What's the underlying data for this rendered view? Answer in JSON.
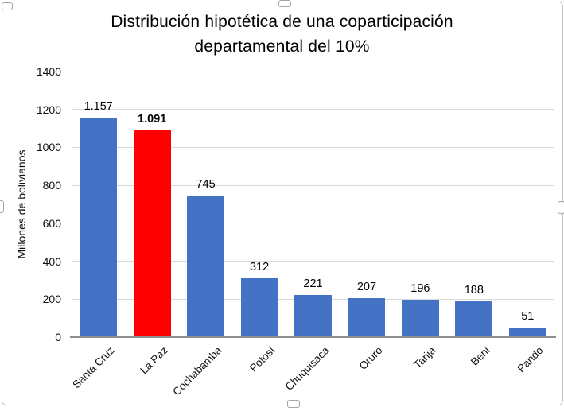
{
  "chart_object": {
    "selected": true,
    "border_color": "#c3c3c3",
    "background": "#ffffff"
  },
  "chart_data": {
    "type": "bar",
    "title_line1": "Distribución hipotética de una coparticipación",
    "title_line2": "departamental del 10%",
    "ylabel": "Millones de bolivianos",
    "xlabel": "",
    "categories": [
      "Santa Cruz",
      "La Paz",
      "Cochabamba",
      "Potosí",
      "Chuquisaca",
      "Oruro",
      "Tarija",
      "Beni",
      "Pando"
    ],
    "values": [
      1157,
      1091,
      745,
      312,
      221,
      207,
      196,
      188,
      51
    ],
    "data_labels": [
      "1.157",
      "1.091",
      "745",
      "312",
      "221",
      "207",
      "196",
      "188",
      "51"
    ],
    "highlight_index": 1,
    "bold_label_index": 1,
    "bar_color": "#4472c4",
    "highlight_color": "#ff0000",
    "ylim": [
      0,
      1400
    ],
    "yticks": [
      0,
      200,
      400,
      600,
      800,
      1000,
      1200,
      1400
    ],
    "ytick_labels": [
      "0",
      "200",
      "400",
      "600",
      "800",
      "1000",
      "1200",
      "1400"
    ],
    "grid": true,
    "gridline_color": "#d9d9d9",
    "axis_line_color": "#8f8f8f",
    "legend": "none"
  }
}
